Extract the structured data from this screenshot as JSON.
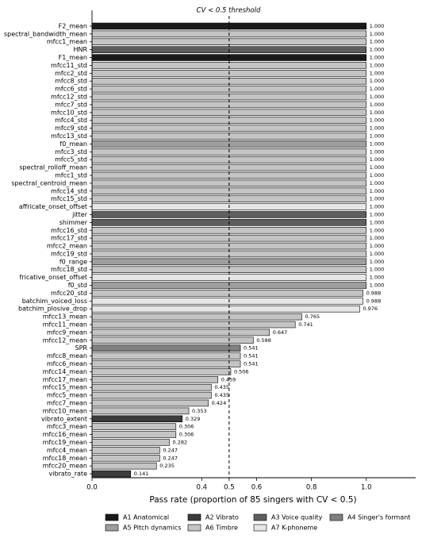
{
  "chart_data": {
    "type": "barh",
    "annotation": "CV < 0.5 threshold",
    "threshold": 0.5,
    "xlabel": "Pass rate (proportion of 85 singers with CV < 0.5)",
    "categories": [
      "F2_mean",
      "spectral_bandwidth_mean",
      "mfcc1_mean",
      "HNR",
      "F1_mean",
      "mfcc11_std",
      "mfcc2_std",
      "mfcc8_std",
      "mfcc6_std",
      "mfcc12_std",
      "mfcc7_std",
      "mfcc10_std",
      "mfcc4_std",
      "mfcc9_std",
      "mfcc13_std",
      "f0_mean",
      "mfcc3_std",
      "mfcc5_std",
      "spectral_rolloff_mean",
      "mfcc1_std",
      "spectral_centroid_mean",
      "mfcc14_std",
      "mfcc15_std",
      "affricate_onset_offset",
      "jitter",
      "shimmer",
      "mfcc16_std",
      "mfcc17_std",
      "mfcc2_mean",
      "mfcc19_std",
      "f0_range",
      "mfcc18_std",
      "fricative_onset_offset",
      "f0_std",
      "mfcc20_std",
      "batchim_voiced_loss",
      "batchim_plosive_drop",
      "mfcc13_mean",
      "mfcc11_mean",
      "mfcc9_mean",
      "mfcc12_mean",
      "SPR",
      "mfcc8_mean",
      "mfcc6_mean",
      "mfcc14_mean",
      "mfcc17_mean",
      "mfcc15_mean",
      "mfcc5_mean",
      "mfcc7_mean",
      "mfcc10_mean",
      "vibrato_extent",
      "mfcc3_mean",
      "mfcc16_mean",
      "mfcc19_mean",
      "mfcc4_mean",
      "mfcc18_mean",
      "mfcc20_mean",
      "vibrato_rate"
    ],
    "values": [
      1,
      1,
      1,
      1,
      1,
      1,
      1,
      1,
      1,
      1,
      1,
      1,
      1,
      1,
      1,
      1,
      1,
      1,
      1,
      1,
      1,
      1,
      1,
      1,
      1,
      1,
      1,
      1,
      1,
      1,
      1,
      1,
      1,
      1,
      0.988,
      0.988,
      0.976,
      0.765,
      0.741,
      0.647,
      0.588,
      0.541,
      0.541,
      0.541,
      0.506,
      0.459,
      0.435,
      0.435,
      0.424,
      0.353,
      0.329,
      0.306,
      0.306,
      0.282,
      0.247,
      0.247,
      0.235,
      0.141
    ],
    "value_labels": [
      "1.000",
      "1.000",
      "1.000",
      "1.000",
      "1.000",
      "1.000",
      "1.000",
      "1.000",
      "1.000",
      "1.000",
      "1.000",
      "1.000",
      "1.000",
      "1.000",
      "1.000",
      "1.000",
      "1.000",
      "1.000",
      "1.000",
      "1.000",
      "1.000",
      "1.000",
      "1.000",
      "1.000",
      "1.000",
      "1.000",
      "1.000",
      "1.000",
      "1.000",
      "1.000",
      "1.000",
      "1.000",
      "1.000",
      "1.000",
      "0.988",
      "0.988",
      "0.976",
      "0.765",
      "0.741",
      "0.647",
      "0.588",
      "0.541",
      "0.541",
      "0.541",
      "0.506",
      "0.459",
      "0.435",
      "0.435",
      "0.424",
      "0.353",
      "0.329",
      "0.306",
      "0.306",
      "0.282",
      "0.247",
      "0.247",
      "0.235",
      "0.141"
    ],
    "colors": [
      "#1a1a1a",
      "#c4c4c4",
      "#c4c4c4",
      "#5e5e5e",
      "#1a1a1a",
      "#c4c4c4",
      "#c4c4c4",
      "#c4c4c4",
      "#c4c4c4",
      "#c4c4c4",
      "#c4c4c4",
      "#c4c4c4",
      "#c4c4c4",
      "#c4c4c4",
      "#c4c4c4",
      "#9e9e9e",
      "#c4c4c4",
      "#c4c4c4",
      "#c4c4c4",
      "#c4c4c4",
      "#c4c4c4",
      "#c4c4c4",
      "#c4c4c4",
      "#e6e6e6",
      "#5e5e5e",
      "#5e5e5e",
      "#c4c4c4",
      "#c4c4c4",
      "#c4c4c4",
      "#c4c4c4",
      "#9e9e9e",
      "#c4c4c4",
      "#e6e6e6",
      "#9e9e9e",
      "#c4c4c4",
      "#e6e6e6",
      "#e6e6e6",
      "#c4c4c4",
      "#c4c4c4",
      "#c4c4c4",
      "#c4c4c4",
      "#808080",
      "#c4c4c4",
      "#c4c4c4",
      "#c4c4c4",
      "#c4c4c4",
      "#c4c4c4",
      "#c4c4c4",
      "#c4c4c4",
      "#c4c4c4",
      "#3c3c3c",
      "#c4c4c4",
      "#c4c4c4",
      "#c4c4c4",
      "#c4c4c4",
      "#c4c4c4",
      "#c4c4c4",
      "#3c3c3c"
    ],
    "legend": [
      {
        "name": "A1 Anatomical",
        "color": "#1a1a1a"
      },
      {
        "name": "A2 Vibrato",
        "color": "#3c3c3c"
      },
      {
        "name": "A3 Voice quality",
        "color": "#5e5e5e"
      },
      {
        "name": "A4 Singer's formant",
        "color": "#808080"
      },
      {
        "name": "A5 Pitch dynamics",
        "color": "#9e9e9e"
      },
      {
        "name": "A6 Timbre",
        "color": "#c4c4c4"
      },
      {
        "name": "A7 K-phoneme",
        "color": "#e6e6e6"
      }
    ],
    "xlim": [
      0,
      1.18
    ],
    "xticks": [
      {
        "value": 0,
        "label": "0.0"
      },
      0.4,
      0.5,
      0.6,
      0.8,
      {
        "value": 1,
        "label": "1.0"
      }
    ]
  }
}
